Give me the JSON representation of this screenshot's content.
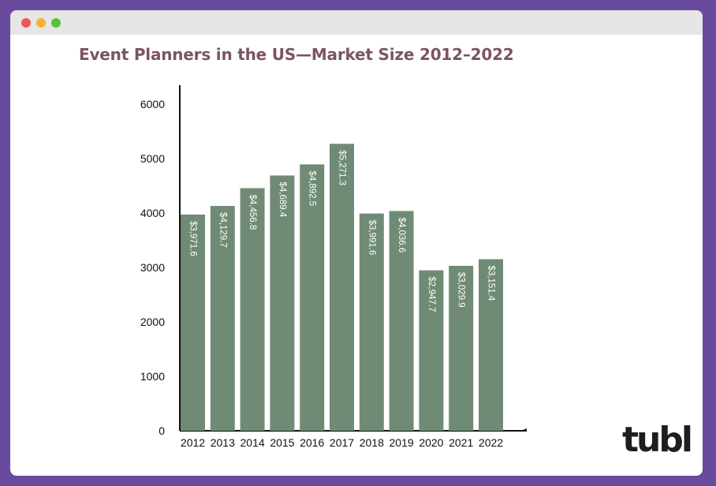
{
  "window": {
    "controls": [
      "close",
      "minimize",
      "zoom"
    ]
  },
  "logo": {
    "text": "tubl"
  },
  "chart_data": {
    "type": "bar",
    "title": "Event Planners in the US—Market Size 2012–2022",
    "xlabel": "",
    "ylabel": "",
    "categories": [
      "2012",
      "2013",
      "2014",
      "2015",
      "2016",
      "2017",
      "2018",
      "2019",
      "2020",
      "2021",
      "2022"
    ],
    "values": [
      3971.6,
      4129.7,
      4456.8,
      4689.4,
      4892.5,
      5271.3,
      3991.6,
      4036.6,
      2947.7,
      3029.9,
      3151.4
    ],
    "value_labels": [
      "$3,971.6",
      "$4,129.7",
      "$4,456.8",
      "$4,689.4",
      "$4,892.5",
      "$5,271.3",
      "$3,991.6",
      "$4,036.6",
      "$2,947.7",
      "$3,029.9",
      "$3,151.4"
    ],
    "yticks": [
      0,
      1000,
      2000,
      3000,
      4000,
      5000,
      6000
    ],
    "ylim": [
      0,
      6000
    ],
    "grid": false,
    "legend": "none",
    "bar_color": "#6f8b75",
    "label_color": "#ffffff",
    "title_color": "#7a5560"
  }
}
